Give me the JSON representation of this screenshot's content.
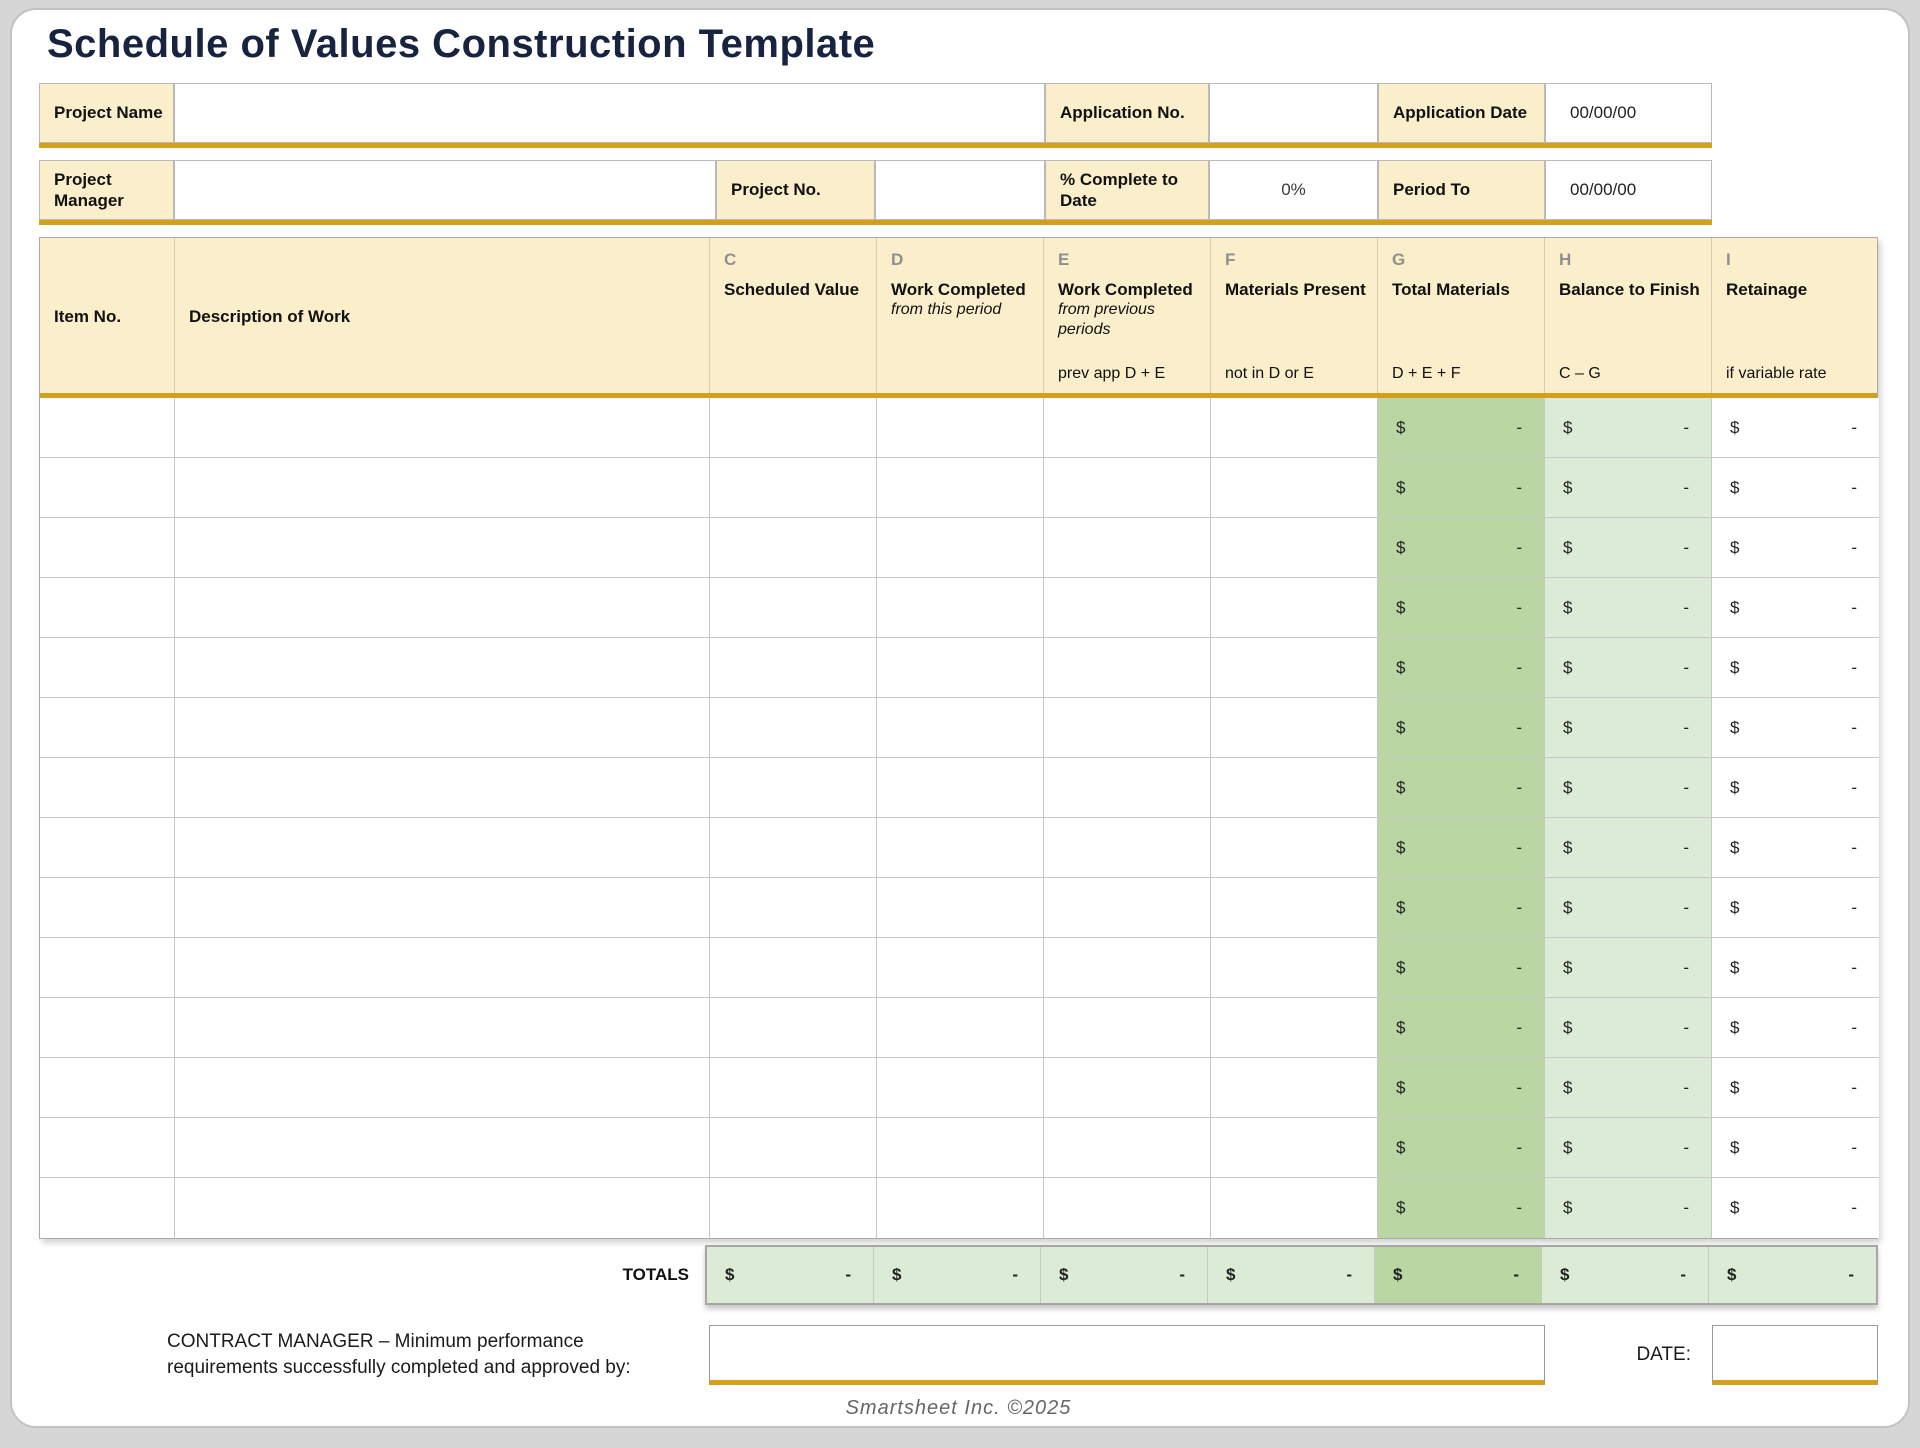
{
  "page": {
    "title": "Schedule of Values Construction Template",
    "footer": "Smartsheet Inc. ©2025"
  },
  "info": {
    "project_name_label": "Project Name",
    "project_name_value": "",
    "application_no_label": "Application No.",
    "application_no_value": "",
    "application_date_label": "Application Date",
    "application_date_value": "00/00/00",
    "project_manager_label": "Project Manager",
    "project_manager_value": "",
    "project_no_label": "Project No.",
    "project_no_value": "",
    "pct_complete_label": "% Complete to Date",
    "pct_complete_value": "0%",
    "period_to_label": "Period To",
    "period_to_value": "00/00/00"
  },
  "table": {
    "columns": [
      {
        "letter": "",
        "title": "Item No.",
        "subtitle": "",
        "formula": ""
      },
      {
        "letter": "",
        "title": "Description of Work",
        "subtitle": "",
        "formula": ""
      },
      {
        "letter": "C",
        "title": "Scheduled Value",
        "subtitle": "",
        "formula": ""
      },
      {
        "letter": "D",
        "title": "Work Completed",
        "subtitle": "from this period",
        "formula": ""
      },
      {
        "letter": "E",
        "title": "Work Completed",
        "subtitle": "from previous periods",
        "formula": "prev app D + E"
      },
      {
        "letter": "F",
        "title": "Materials Present",
        "subtitle": "",
        "formula": "not in D or E"
      },
      {
        "letter": "G",
        "title": "Total Materials",
        "subtitle": "",
        "formula": "D + E + F"
      },
      {
        "letter": "H",
        "title": "Balance to Finish",
        "subtitle": "",
        "formula": "C – G"
      },
      {
        "letter": "I",
        "title": "Retainage",
        "subtitle": "",
        "formula": "if variable rate"
      }
    ],
    "row_count": 14,
    "currency_symbol": "$",
    "empty_amount": "-",
    "totals_label": "TOTALS"
  },
  "signoff": {
    "contract_manager_text": "CONTRACT MANAGER – Minimum performance requirements successfully completed and approved by:",
    "date_label": "DATE:"
  },
  "colors": {
    "accent_gold": "#D4A01C",
    "header_cream": "#FAEECB",
    "green_medium": "#B9D6A3",
    "green_light": "#DCEBD5",
    "title_navy": "#17233F"
  }
}
